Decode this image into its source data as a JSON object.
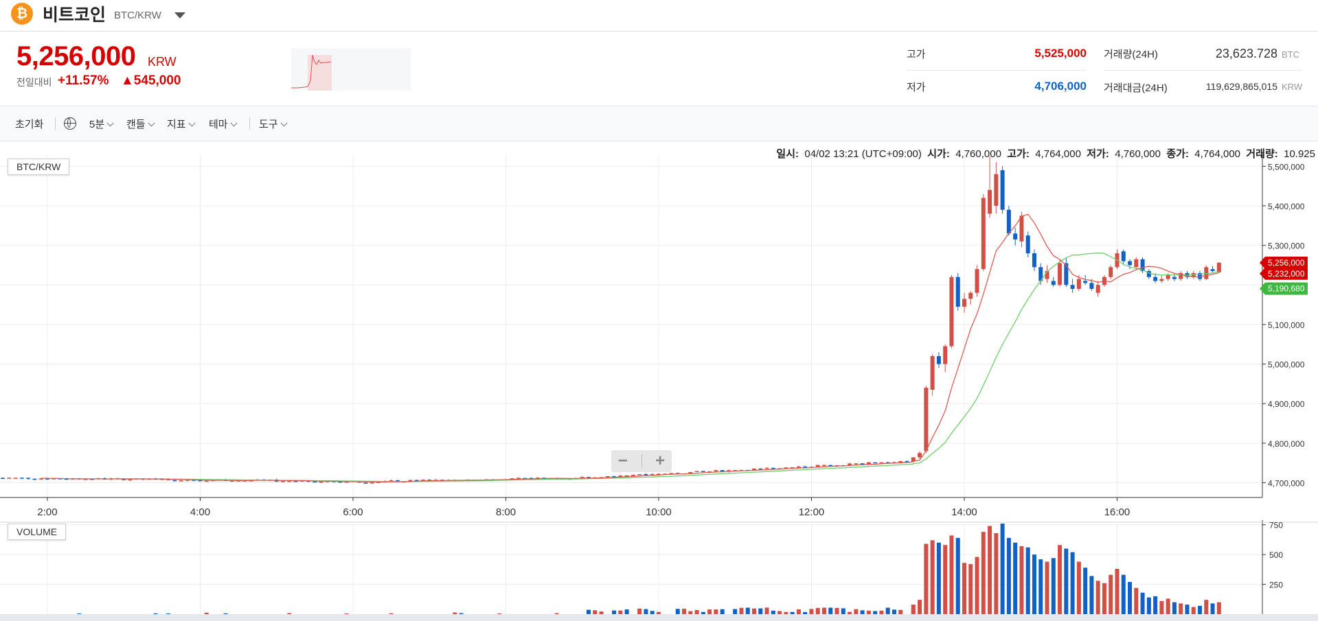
{
  "header": {
    "coin_icon": "bitcoin-icon",
    "coin_name": "비트코인",
    "pair": "BTC/KRW"
  },
  "price": {
    "value": "5,256,000",
    "unit": "KRW",
    "change_label": "전일대비",
    "change_rate": "+11.57%",
    "change_amount": "▲545,000"
  },
  "stats": {
    "high_label": "고가",
    "high_value": "5,525,000",
    "low_label": "저가",
    "low_value": "4,706,000",
    "volume_label": "거래량(24H)",
    "volume_value": "23,623.728",
    "volume_unit": "BTC",
    "amount_label": "거래대금(24H)",
    "amount_value": "119,629,865,015",
    "amount_unit": "KRW"
  },
  "toolbar": {
    "reset": "초기화",
    "interval": "5분",
    "candle": "캔들",
    "indicator": "지표",
    "theme": "테마",
    "tools": "도구"
  },
  "info": {
    "date_label": "일시:",
    "date_value": "04/02 13:21 (UTC+09:00)",
    "open_label": "시가:",
    "open_value": "4,760,000",
    "high_label": "고가:",
    "high_value": "4,764,000",
    "low_label": "저가:",
    "low_value": "4,760,000",
    "close_label": "종가:",
    "close_value": "4,764,000",
    "vol_label": "거래량:",
    "vol_value": "10.925"
  },
  "colors": {
    "up": "#d24f45",
    "down": "#1261c4",
    "ma_short": "#e05b4f",
    "ma_long": "#6fcf6f",
    "price_tag": "#d60000",
    "ma_tag": "#3fb83f"
  },
  "chart_data": {
    "type": "candlestick",
    "pane_label": "BTC/KRW",
    "volume_label": "VOLUME",
    "x_ticks": [
      "2:00",
      "4:00",
      "6:00",
      "8:00",
      "10:00",
      "12:00",
      "14:00",
      "16:00"
    ],
    "y_ticks": [
      "4,700,000",
      "4,800,000",
      "4,900,000",
      "5,000,000",
      "5,100,000",
      "5,200,000",
      "5,300,000",
      "5,400,000",
      "5,500,000"
    ],
    "ylim": [
      4680000,
      5530000
    ],
    "volume_ticks": [
      "250",
      "500",
      "750"
    ],
    "volume_ylim": [
      0,
      760
    ],
    "price_tags": [
      {
        "label": "5,256,000",
        "value": 5256000,
        "color": "#d60000"
      },
      {
        "label": "5,232,000",
        "value": 5232000,
        "color": "#d60000"
      },
      {
        "label": "5,190,680",
        "value": 5190680,
        "color": "#3fb83f"
      }
    ],
    "time_start_hour": 1.333,
    "time_step_minutes": 5,
    "candles": [
      {
        "t": "13:20",
        "o": 4755000,
        "h": 4765000,
        "l": 4752000,
        "c": 4764000,
        "v": 80
      },
      {
        "t": "13:25",
        "o": 4764000,
        "h": 4780000,
        "l": 4760000,
        "c": 4775000,
        "v": 120
      },
      {
        "t": "13:30",
        "o": 4780000,
        "h": 4945000,
        "l": 4775000,
        "c": 4940000,
        "v": 590
      },
      {
        "t": "13:35",
        "o": 4935000,
        "h": 5025000,
        "l": 4920000,
        "c": 5020000,
        "v": 620
      },
      {
        "t": "13:40",
        "o": 5020000,
        "h": 5030000,
        "l": 4990000,
        "c": 5000000,
        "v": 600
      },
      {
        "t": "13:45",
        "o": 5000000,
        "h": 5050000,
        "l": 4980000,
        "c": 5045000,
        "v": 580
      },
      {
        "t": "13:50",
        "o": 5045000,
        "h": 5225000,
        "l": 5040000,
        "c": 5220000,
        "v": 660
      },
      {
        "t": "13:55",
        "o": 5220000,
        "h": 5230000,
        "l": 5135000,
        "c": 5145000,
        "v": 640
      },
      {
        "t": "14:00",
        "o": 5145000,
        "h": 5180000,
        "l": 5130000,
        "c": 5165000,
        "v": 430
      },
      {
        "t": "14:05",
        "o": 5165000,
        "h": 5185000,
        "l": 5150000,
        "c": 5180000,
        "v": 420
      },
      {
        "t": "14:10",
        "o": 5180000,
        "h": 5250000,
        "l": 5170000,
        "c": 5240000,
        "v": 480
      },
      {
        "t": "14:15",
        "o": 5240000,
        "h": 5430000,
        "l": 5235000,
        "c": 5420000,
        "v": 690
      },
      {
        "t": "14:20",
        "o": 5380000,
        "h": 5525000,
        "l": 5370000,
        "c": 5440000,
        "v": 740
      },
      {
        "t": "14:25",
        "o": 5400000,
        "h": 5510000,
        "l": 5380000,
        "c": 5480000,
        "v": 680
      },
      {
        "t": "14:30",
        "o": 5490000,
        "h": 5500000,
        "l": 5380000,
        "c": 5390000,
        "v": 760
      },
      {
        "t": "14:35",
        "o": 5390000,
        "h": 5400000,
        "l": 5325000,
        "c": 5330000,
        "v": 640
      },
      {
        "t": "14:40",
        "o": 5330000,
        "h": 5345000,
        "l": 5300000,
        "c": 5315000,
        "v": 600
      },
      {
        "t": "14:45",
        "o": 5310000,
        "h": 5385000,
        "l": 5295000,
        "c": 5375000,
        "v": 570
      },
      {
        "t": "14:50",
        "o": 5325000,
        "h": 5335000,
        "l": 5270000,
        "c": 5280000,
        "v": 560
      },
      {
        "t": "14:55",
        "o": 5280000,
        "h": 5290000,
        "l": 5235000,
        "c": 5245000,
        "v": 500
      },
      {
        "t": "15:00",
        "o": 5245000,
        "h": 5255000,
        "l": 5200000,
        "c": 5210000,
        "v": 460
      },
      {
        "t": "15:05",
        "o": 5215000,
        "h": 5250000,
        "l": 5205000,
        "c": 5235000,
        "v": 440
      },
      {
        "t": "15:10",
        "o": 5210000,
        "h": 5220000,
        "l": 5195000,
        "c": 5200000,
        "v": 470
      },
      {
        "t": "15:15",
        "o": 5200000,
        "h": 5265000,
        "l": 5195000,
        "c": 5255000,
        "v": 580
      },
      {
        "t": "15:20",
        "o": 5255000,
        "h": 5270000,
        "l": 5195000,
        "c": 5200000,
        "v": 550
      },
      {
        "t": "15:25",
        "o": 5200000,
        "h": 5215000,
        "l": 5180000,
        "c": 5190000,
        "v": 520
      },
      {
        "t": "15:30",
        "o": 5190000,
        "h": 5225000,
        "l": 5185000,
        "c": 5215000,
        "v": 440
      },
      {
        "t": "15:35",
        "o": 5210000,
        "h": 5225000,
        "l": 5200000,
        "c": 5205000,
        "v": 390
      },
      {
        "t": "15:40",
        "o": 5205000,
        "h": 5215000,
        "l": 5185000,
        "c": 5190000,
        "v": 320
      },
      {
        "t": "15:45",
        "o": 5180000,
        "h": 5210000,
        "l": 5170000,
        "c": 5200000,
        "v": 280
      },
      {
        "t": "15:50",
        "o": 5200000,
        "h": 5225000,
        "l": 5195000,
        "c": 5220000,
        "v": 260
      },
      {
        "t": "15:55",
        "o": 5220000,
        "h": 5250000,
        "l": 5215000,
        "c": 5245000,
        "v": 330
      },
      {
        "t": "16:00",
        "o": 5245000,
        "h": 5290000,
        "l": 5240000,
        "c": 5280000,
        "v": 380
      },
      {
        "t": "16:05",
        "o": 5285000,
        "h": 5290000,
        "l": 5250000,
        "c": 5260000,
        "v": 330
      },
      {
        "t": "16:10",
        "o": 5260000,
        "h": 5265000,
        "l": 5240000,
        "c": 5250000,
        "v": 270
      },
      {
        "t": "16:15",
        "o": 5245000,
        "h": 5270000,
        "l": 5240000,
        "c": 5265000,
        "v": 220
      },
      {
        "t": "16:20",
        "o": 5265000,
        "h": 5270000,
        "l": 5230000,
        "c": 5235000,
        "v": 180
      },
      {
        "t": "16:25",
        "o": 5235000,
        "h": 5240000,
        "l": 5215000,
        "c": 5220000,
        "v": 140
      },
      {
        "t": "16:30",
        "o": 5220000,
        "h": 5230000,
        "l": 5205000,
        "c": 5210000,
        "v": 150
      },
      {
        "t": "16:35",
        "o": 5210000,
        "h": 5225000,
        "l": 5205000,
        "c": 5215000,
        "v": 110
      },
      {
        "t": "16:40",
        "o": 5215000,
        "h": 5230000,
        "l": 5210000,
        "c": 5225000,
        "v": 130
      },
      {
        "t": "16:45",
        "o": 5220000,
        "h": 5230000,
        "l": 5210000,
        "c": 5215000,
        "v": 100
      },
      {
        "t": "16:50",
        "o": 5215000,
        "h": 5235000,
        "l": 5210000,
        "c": 5230000,
        "v": 90
      },
      {
        "t": "16:55",
        "o": 5230000,
        "h": 5235000,
        "l": 5215000,
        "c": 5220000,
        "v": 80
      },
      {
        "t": "17:00",
        "o": 5220000,
        "h": 5235000,
        "l": 5215000,
        "c": 5230000,
        "v": 60
      },
      {
        "t": "17:05",
        "o": 5230000,
        "h": 5235000,
        "l": 5210000,
        "c": 5215000,
        "v": 70
      },
      {
        "t": "17:10",
        "o": 5215000,
        "h": 5250000,
        "l": 5212000,
        "c": 5245000,
        "v": 120
      },
      {
        "t": "17:15",
        "o": 5240000,
        "h": 5248000,
        "l": 5232000,
        "c": 5235000,
        "v": 90
      },
      {
        "t": "17:20",
        "o": 5232000,
        "h": 5258000,
        "l": 5230000,
        "c": 5256000,
        "v": 100
      }
    ]
  }
}
